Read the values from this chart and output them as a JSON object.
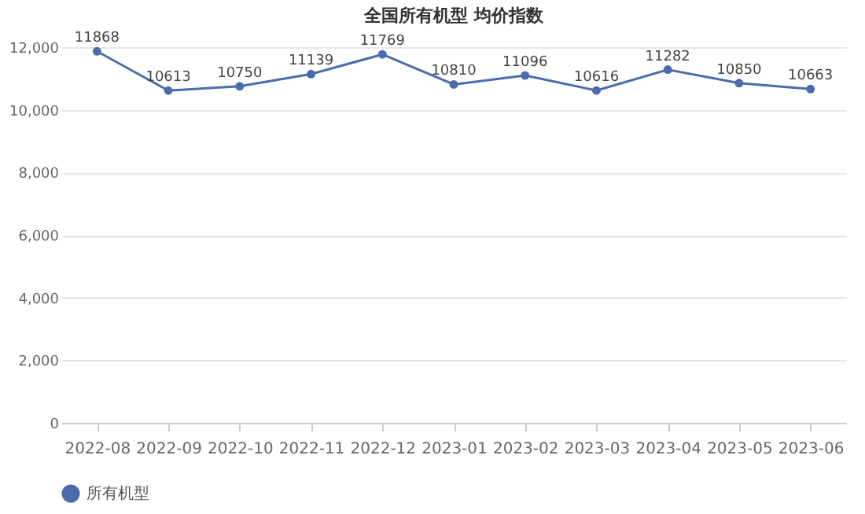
{
  "chart_data": {
    "type": "line",
    "title": "全国所有机型 均价指数",
    "categories": [
      "2022-08",
      "2022-09",
      "2022-10",
      "2022-11",
      "2022-12",
      "2023-01",
      "2023-02",
      "2023-03",
      "2023-04",
      "2023-05",
      "2023-06"
    ],
    "series": [
      {
        "name": "所有机型",
        "color": "#4a6cad",
        "values": [
          11868,
          10613,
          10750,
          11139,
          11769,
          10810,
          11096,
          10616,
          11282,
          10850,
          10663
        ]
      }
    ],
    "ylim": [
      0,
      12000
    ],
    "yticks": [
      0,
      {
        "value": 2000,
        "label": "2,000"
      },
      {
        "value": 4000,
        "label": "4,000"
      },
      {
        "value": 6000,
        "label": "6,000"
      },
      {
        "value": 8000,
        "label": "8,000"
      },
      {
        "value": 10000,
        "label": "10,000"
      },
      {
        "value": 12000,
        "label": "12,000"
      }
    ],
    "grid": "y",
    "legend": "bottom",
    "marker": "circle",
    "line_style": "solid",
    "data_labels": true
  }
}
